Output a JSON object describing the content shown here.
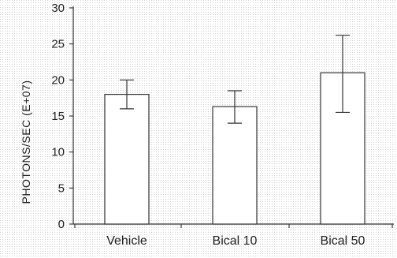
{
  "chart_data": {
    "type": "bar",
    "title": "",
    "xlabel": "",
    "ylabel": "PHOTONS/SEC (E+07)",
    "categories": [
      "Vehicle",
      "Bical 10",
      "Bical 50"
    ],
    "values": [
      18,
      16.3,
      21
    ],
    "error_low": [
      16,
      14,
      15.5
    ],
    "error_high": [
      20,
      18.5,
      26.2
    ],
    "ylim": [
      0,
      30
    ],
    "yticks": [
      "0",
      "5",
      "10",
      "15",
      "20",
      "25",
      "30"
    ],
    "grid": false,
    "legend": "none",
    "colors": {
      "bar_fill": "#ffffff",
      "bar_stroke": "#333333",
      "axis": "#333333",
      "background_dots": "#d0d0d0"
    }
  }
}
